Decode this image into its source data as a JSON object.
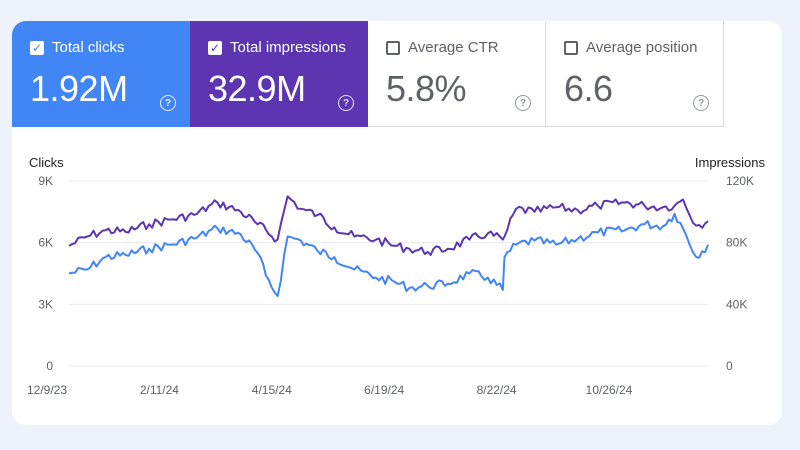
{
  "tiles": [
    {
      "label": "Total clicks",
      "value": "1.92M",
      "checked": true
    },
    {
      "label": "Total impressions",
      "value": "32.9M",
      "checked": true
    },
    {
      "label": "Average CTR",
      "value": "5.8%",
      "checked": false
    },
    {
      "label": "Average position",
      "value": "6.6",
      "checked": false
    }
  ],
  "colors": {
    "clicks": "#4285f4",
    "impressions": "#5e35b1",
    "grid": "#e8eaed",
    "axis_text": "#5f6368"
  },
  "chart_data": {
    "type": "line",
    "ylabel_left": "Clicks",
    "ylabel_right": "Impressions",
    "y_left_ticks": [
      "9K",
      "6K",
      "3K",
      "0"
    ],
    "y_right_ticks": [
      "120K",
      "80K",
      "40K",
      "0"
    ],
    "y_left_range": [
      0,
      9000
    ],
    "y_right_range": [
      0,
      120000
    ],
    "x_ticks": [
      "12/9/23",
      "2/11/24",
      "4/15/24",
      "6/19/24",
      "8/22/24",
      "10/26/24"
    ],
    "x_range": [
      "2023-11-28",
      "2024-12-15"
    ],
    "series": [
      {
        "name": "Clicks",
        "axis": "left",
        "x": [
          "2023-11-28",
          "2023-12-09",
          "2023-12-20",
          "2024-01-01",
          "2024-01-15",
          "2024-01-28",
          "2024-02-11",
          "2024-02-25",
          "2024-03-10",
          "2024-03-20",
          "2024-03-25",
          "2024-04-01",
          "2024-04-07",
          "2024-04-15",
          "2024-04-25",
          "2024-05-05",
          "2024-05-17",
          "2024-05-30",
          "2024-06-10",
          "2024-06-19",
          "2024-06-30",
          "2024-07-12",
          "2024-07-25",
          "2024-08-05",
          "2024-08-14",
          "2024-08-15",
          "2024-08-22",
          "2024-09-02",
          "2024-09-15",
          "2024-09-28",
          "2024-10-10",
          "2024-10-26",
          "2024-11-07",
          "2024-11-18",
          "2024-11-25",
          "2024-11-30",
          "2024-12-08",
          "2024-12-15"
        ],
        "values": [
          4500,
          4700,
          5300,
          5400,
          5700,
          5900,
          6200,
          6700,
          6400,
          5500,
          4400,
          3400,
          6300,
          6100,
          5600,
          5300,
          4700,
          4300,
          4100,
          3800,
          3900,
          4000,
          4500,
          4300,
          3700,
          5300,
          5900,
          6100,
          5900,
          6200,
          6500,
          6600,
          6900,
          6800,
          7400,
          6700,
          5300,
          5900
        ]
      },
      {
        "name": "Impressions",
        "axis": "right",
        "x": [
          "2023-11-28",
          "2023-12-09",
          "2023-12-20",
          "2024-01-01",
          "2024-01-15",
          "2024-01-28",
          "2024-02-11",
          "2024-02-25",
          "2024-03-10",
          "2024-03-20",
          "2024-04-01",
          "2024-04-07",
          "2024-04-15",
          "2024-04-25",
          "2024-05-05",
          "2024-05-17",
          "2024-05-30",
          "2024-06-10",
          "2024-06-19",
          "2024-06-30",
          "2024-07-12",
          "2024-07-25",
          "2024-08-05",
          "2024-08-14",
          "2024-08-15",
          "2024-08-22",
          "2024-09-02",
          "2024-09-15",
          "2024-09-28",
          "2024-10-10",
          "2024-10-26",
          "2024-11-07",
          "2024-11-18",
          "2024-11-25",
          "2024-11-30",
          "2024-12-08",
          "2024-12-15"
        ],
        "values": [
          78000,
          84000,
          88000,
          87000,
          92000,
          95000,
          98000,
          106000,
          100000,
          92000,
          82000,
          110000,
          102000,
          98000,
          90000,
          84000,
          82000,
          78000,
          76000,
          74000,
          76000,
          82000,
          86000,
          82000,
          84000,
          102000,
          100000,
          103000,
          101000,
          104000,
          106000,
          104000,
          103000,
          104000,
          108000,
          91000,
          94000
        ]
      }
    ]
  }
}
